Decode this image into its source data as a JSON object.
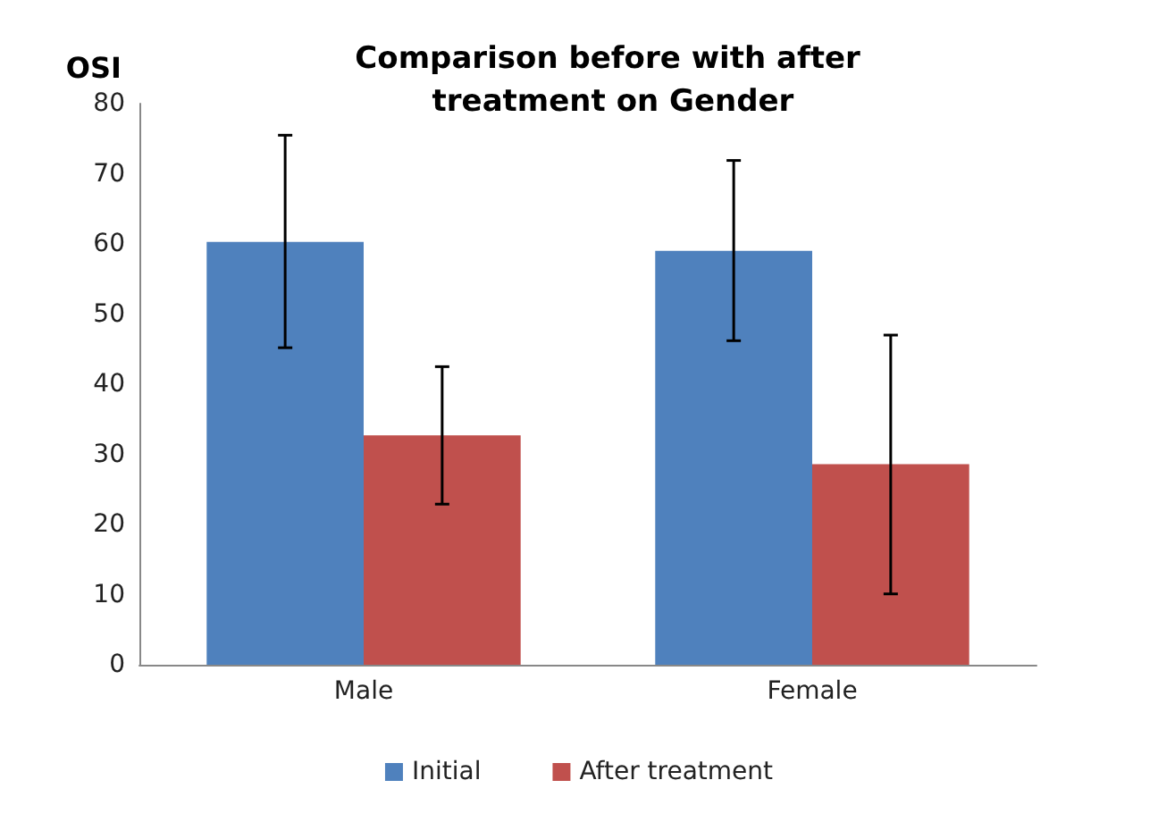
{
  "chart_data": {
    "type": "bar",
    "title": "Comparison before with after treatment on Gender",
    "ylabel": "OSI",
    "categories": [
      "Male",
      "Female"
    ],
    "series": [
      {
        "name": "Initial",
        "color": "#4f81bd",
        "values": [
          60.3,
          59
        ],
        "errors": [
          [
            45.2,
            75.5
          ],
          [
            46.2,
            71.9
          ]
        ]
      },
      {
        "name": "After treatment",
        "color": "#c0504d",
        "values": [
          32.7,
          28.6
        ],
        "errors": [
          [
            22.9,
            42.5
          ],
          [
            10.1,
            47
          ]
        ]
      }
    ],
    "ylim": [
      0,
      80
    ],
    "yticks": [
      0,
      10,
      20,
      30,
      40,
      50,
      60,
      70,
      80
    ],
    "grid": false,
    "legend": "bottom"
  }
}
